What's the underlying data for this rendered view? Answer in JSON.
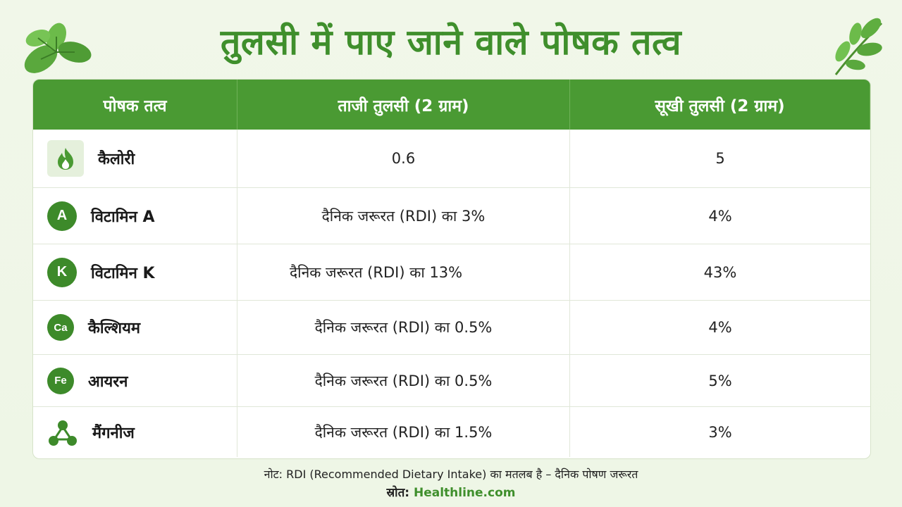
{
  "title": "तुलसी में पाए जाने वाले पोषक तत्व",
  "table": {
    "headers": [
      "पोषक तत्व",
      "ताजी तुलसी (2 ग्राम)",
      "सूखी तुलसी (2 ग्राम)"
    ],
    "rows": [
      {
        "icon": "flame-icon",
        "icon_text": "",
        "name": "कैलोरी",
        "fresh": "0.6",
        "dried": "5"
      },
      {
        "icon": "vitamin-a-icon",
        "icon_text": "A",
        "name": "विटामिन A",
        "fresh": "दैनिक जरूरत (RDI) का 3%",
        "dried": "4%"
      },
      {
        "icon": "vitamin-k-icon",
        "icon_text": "K",
        "name": "विटामिन K",
        "fresh": "दैनिक जरूरत (RDI) का 13%",
        "dried": "43%"
      },
      {
        "icon": "calcium-icon",
        "icon_text": "Ca",
        "name": "कैल्शियम",
        "fresh": "दैनिक जरूरत (RDI) का 0.5%",
        "dried": "4%"
      },
      {
        "icon": "iron-icon",
        "icon_text": "Fe",
        "name": "आयरन",
        "fresh": "दैनिक जरूरत (RDI) का 0.5%",
        "dried": "5%"
      },
      {
        "icon": "manganese-molecule-icon",
        "icon_text": "",
        "name": "मैंगनीज",
        "fresh": "दैनिक जरूरत (RDI) का 1.5%",
        "dried": "3%"
      }
    ]
  },
  "note": "नोट: RDI (Recommended Dietary Intake) का मतलब है – दैनिक पोषण जरूरत",
  "source": {
    "label": "स्रोत:",
    "site": "Healthline.com"
  },
  "colors": {
    "accent": "#4a9a33",
    "title": "#3f8f2c",
    "icon": "#3d8a2a"
  }
}
